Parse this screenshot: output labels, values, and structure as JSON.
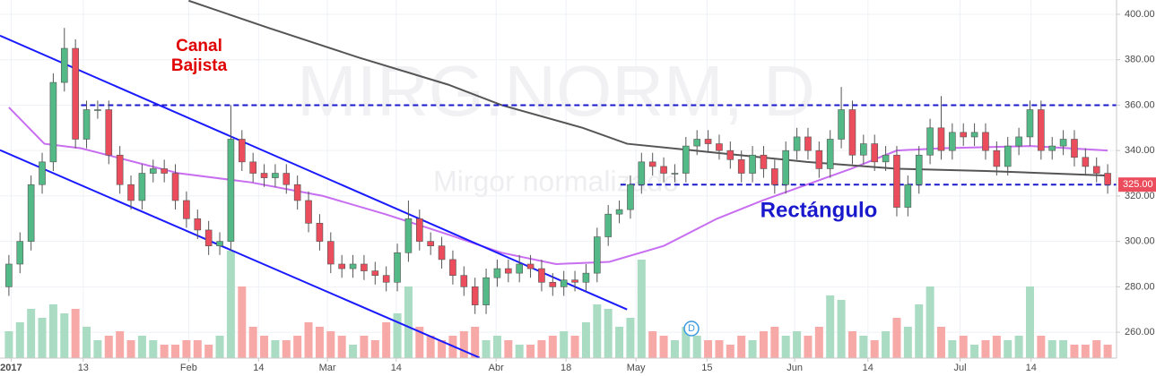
{
  "chart_data": {
    "type": "candlestick",
    "watermark": "MIRG.NORM, D",
    "watermark_sub": "Mirgor normalizado",
    "annotations": [
      "Canal",
      "Bajista",
      "Rectángulo"
    ],
    "event_marker": "D",
    "up_color": "#53b987",
    "down_color": "#eb4d5c",
    "up_volume_color": "#a9dcc3",
    "down_volume_color": "#f7a9a7",
    "xlim": [
      -0.8,
      99.8
    ],
    "ylim": [
      248.6,
      406.3
    ],
    "vlim": [
      0,
      150
    ],
    "yticks": [
      {
        "value": 260,
        "label": "260.00"
      },
      {
        "value": 280,
        "label": "280.00"
      },
      {
        "value": 300,
        "label": "300.00"
      },
      {
        "value": 320,
        "label": "320.00"
      },
      {
        "value": 340,
        "label": "340.00"
      },
      {
        "value": 360,
        "label": "360.00"
      },
      {
        "value": 380,
        "label": "380.00"
      },
      {
        "value": 400,
        "label": "400.00"
      }
    ],
    "xticks": [
      {
        "value": 0.2,
        "label": "2017"
      },
      {
        "value": 6.7,
        "label": "13"
      },
      {
        "value": 16.2,
        "label": "Feb"
      },
      {
        "value": 22.5,
        "label": "14"
      },
      {
        "value": 28.7,
        "label": "Mar"
      },
      {
        "value": 34.9,
        "label": "14"
      },
      {
        "value": 43.9,
        "label": "Abr"
      },
      {
        "value": 50.2,
        "label": "18"
      },
      {
        "value": 56.5,
        "label": "May"
      },
      {
        "value": 62.9,
        "label": "15"
      },
      {
        "value": 70.8,
        "label": "Jun"
      },
      {
        "value": 77.4,
        "label": "14"
      },
      {
        "value": 85.7,
        "label": "Jul"
      },
      {
        "value": 92.1,
        "label": "14"
      }
    ],
    "grid": true,
    "open": [
      280,
      290,
      300,
      325,
      335,
      370,
      385,
      345,
      358,
      358,
      338,
      325,
      318,
      330,
      332,
      330,
      318,
      310,
      305,
      298,
      300,
      345,
      335,
      330,
      328,
      330,
      325,
      318,
      308,
      300,
      290,
      288,
      290,
      287,
      285,
      282,
      295,
      310,
      300,
      298,
      292,
      285,
      280,
      272,
      284,
      288,
      286,
      290,
      288,
      282,
      280,
      283,
      282,
      286,
      302,
      312,
      314,
      325,
      335,
      333,
      330,
      330,
      342,
      345,
      343,
      340,
      336,
      330,
      338,
      332,
      325,
      340,
      346,
      340,
      332,
      345,
      358,
      338,
      343,
      335,
      338,
      315,
      325,
      338,
      350,
      340,
      348,
      346,
      348,
      340,
      333,
      342,
      346,
      358,
      340,
      342,
      345,
      337,
      333,
      330
    ],
    "high": [
      294,
      304,
      329,
      339,
      374,
      394,
      389,
      362,
      362,
      362,
      342,
      329,
      334,
      336,
      336,
      334,
      322,
      314,
      309,
      304,
      360,
      349,
      339,
      334,
      334,
      334,
      329,
      322,
      312,
      304,
      294,
      294,
      294,
      291,
      289,
      299,
      318,
      314,
      304,
      302,
      296,
      289,
      284,
      288,
      292,
      292,
      294,
      294,
      292,
      286,
      287,
      287,
      290,
      306,
      316,
      318,
      329,
      339,
      339,
      337,
      334,
      346,
      349,
      349,
      347,
      344,
      340,
      342,
      342,
      336,
      344,
      350,
      350,
      344,
      349,
      368,
      362,
      347,
      347,
      342,
      342,
      329,
      342,
      354,
      364,
      352,
      352,
      352,
      352,
      344,
      346,
      350,
      362,
      362,
      346,
      349,
      349,
      341,
      337,
      334
    ],
    "low": [
      276,
      286,
      296,
      321,
      331,
      366,
      341,
      341,
      354,
      334,
      321,
      314,
      314,
      326,
      326,
      314,
      306,
      301,
      294,
      294,
      296,
      331,
      326,
      324,
      324,
      321,
      314,
      304,
      296,
      286,
      284,
      284,
      283,
      281,
      278,
      278,
      291,
      296,
      294,
      288,
      281,
      276,
      268,
      268,
      280,
      282,
      282,
      284,
      278,
      276,
      276,
      278,
      278,
      282,
      298,
      308,
      310,
      321,
      329,
      326,
      326,
      326,
      338,
      339,
      336,
      332,
      326,
      326,
      328,
      321,
      321,
      336,
      336,
      328,
      328,
      341,
      334,
      334,
      331,
      331,
      311,
      311,
      321,
      334,
      336,
      336,
      342,
      342,
      336,
      329,
      329,
      338,
      342,
      336,
      336,
      338,
      333,
      329,
      326,
      321
    ],
    "close": [
      290,
      300,
      325,
      335,
      370,
      385,
      345,
      358,
      358,
      338,
      325,
      318,
      330,
      332,
      330,
      318,
      310,
      305,
      298,
      300,
      345,
      335,
      330,
      328,
      330,
      325,
      318,
      308,
      300,
      290,
      288,
      290,
      287,
      285,
      282,
      295,
      310,
      300,
      298,
      292,
      285,
      280,
      272,
      284,
      288,
      286,
      290,
      288,
      282,
      280,
      283,
      282,
      286,
      302,
      312,
      314,
      325,
      335,
      333,
      330,
      330,
      342,
      345,
      343,
      340,
      336,
      330,
      338,
      332,
      325,
      340,
      346,
      340,
      332,
      345,
      358,
      338,
      343,
      335,
      338,
      315,
      325,
      338,
      350,
      340,
      348,
      346,
      348,
      340,
      333,
      342,
      346,
      358,
      340,
      342,
      345,
      337,
      333,
      330,
      325
    ],
    "volume": [
      30,
      40,
      55,
      45,
      60,
      50,
      55,
      35,
      20,
      25,
      30,
      20,
      25,
      20,
      15,
      15,
      20,
      20,
      15,
      25,
      120,
      80,
      35,
      25,
      20,
      20,
      25,
      40,
      35,
      30,
      25,
      15,
      25,
      20,
      40,
      50,
      80,
      35,
      25,
      20,
      25,
      30,
      35,
      20,
      25,
      20,
      15,
      15,
      20,
      25,
      30,
      25,
      40,
      60,
      55,
      35,
      45,
      110,
      30,
      25,
      20,
      35,
      25,
      20,
      20,
      15,
      25,
      20,
      30,
      35,
      25,
      30,
      25,
      35,
      70,
      65,
      30,
      25,
      20,
      30,
      45,
      35,
      60,
      80,
      35,
      20,
      25,
      15,
      20,
      25,
      20,
      25,
      80,
      25,
      20,
      20,
      15,
      15,
      20,
      15
    ],
    "last_price": {
      "value": 325,
      "label": "325.00"
    },
    "event_x": 61.5,
    "lines": [
      {
        "color": "#c86ef0",
        "x": [
          0,
          3.2,
          6.5,
          11.3,
          15.3,
          21.8,
          28.3,
          33.9,
          39.6,
          44.4,
          49.3,
          54.1,
          59,
          63.8,
          67.9,
          71.9,
          75.9,
          80,
          84,
          92.1,
          99
        ],
        "values": [
          359,
          343,
          341,
          335,
          330,
          326,
          320,
          312,
          303,
          295,
          290,
          291,
          298,
          310,
          318,
          325,
          332,
          340,
          341,
          342,
          340
        ]
      },
      {
        "color": "#555555",
        "x": [
          16.2,
          23.4,
          31.5,
          39.6,
          44.4,
          51.7,
          55.7,
          63.8,
          71.9,
          80,
          88,
          99
        ],
        "values": [
          406,
          394,
          381,
          369,
          360,
          350,
          343,
          339,
          335,
          332,
          331,
          329
        ]
      }
    ],
    "trendlines": [
      {
        "color": "#1a1aff",
        "x": [
          -0.8,
          55.7
        ],
        "values": [
          390.6,
          270
        ]
      },
      {
        "color": "#1a1aff",
        "x": [
          -0.8,
          42.4
        ],
        "values": [
          340.2,
          248.8
        ]
      }
    ],
    "hlines": [
      {
        "color": "#1a1acc",
        "x": [
          6.5,
          99.8
        ],
        "values": [
          360,
          360
        ]
      },
      {
        "color": "#1a1acc",
        "x": [
          55.1,
          99.8
        ],
        "values": [
          325,
          325
        ]
      }
    ]
  }
}
